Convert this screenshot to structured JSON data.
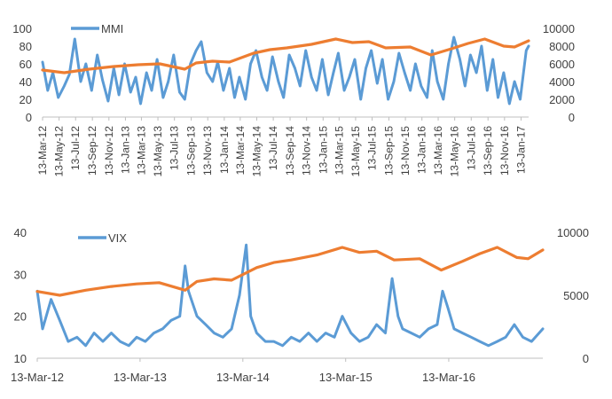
{
  "colors": {
    "primary": "#5B9BD5",
    "secondary": "#ED7D31",
    "axis": "#BFBFBF",
    "text": "#404040"
  },
  "chart_data": [
    {
      "type": "line",
      "legend": {
        "label": "MMI",
        "placement": "top-left"
      },
      "y_left": {
        "ticks": [
          "0",
          "20",
          "40",
          "60",
          "80",
          "100"
        ],
        "range": [
          0,
          100
        ]
      },
      "y_right": {
        "ticks": [
          "0",
          "2000",
          "4000",
          "6000",
          "8000",
          "10000"
        ],
        "range": [
          0,
          10000
        ]
      },
      "x_range": [
        "2012-03-13",
        "2017-02-10"
      ],
      "x_tick_labels": [
        "13-Mar-12",
        "13-May-12",
        "13-Jul-12",
        "13-Sep-12",
        "13-Nov-12",
        "13-Jan-13",
        "13-Mar-13",
        "13-May-13",
        "13-Jul-13",
        "13-Sep-13",
        "13-Nov-13",
        "13-Jan-14",
        "13-Mar-14",
        "13-May-14",
        "13-Jul-14",
        "13-Sep-14",
        "13-Nov-14",
        "13-Jan-15",
        "13-Mar-15",
        "13-May-15",
        "13-Jul-15",
        "13-Sep-15",
        "13-Nov-15",
        "13-Jan-16",
        "13-Mar-16",
        "13-May-16",
        "13-Jul-16",
        "13-Sep-16",
        "13-Nov-16",
        "13-Jan-17"
      ],
      "series": [
        {
          "name": "MMI",
          "axis": "left",
          "color": "#5B9BD5",
          "x": [
            "2012-03-13",
            "2012-04-01",
            "2012-04-20",
            "2012-05-10",
            "2012-06-01",
            "2012-06-20",
            "2012-07-10",
            "2012-08-01",
            "2012-08-20",
            "2012-09-10",
            "2012-10-01",
            "2012-10-20",
            "2012-11-10",
            "2012-12-01",
            "2012-12-20",
            "2013-01-10",
            "2013-02-01",
            "2013-02-20",
            "2013-03-10",
            "2013-04-01",
            "2013-04-20",
            "2013-05-10",
            "2013-06-01",
            "2013-06-20",
            "2013-07-10",
            "2013-08-01",
            "2013-08-20",
            "2013-09-10",
            "2013-10-01",
            "2013-10-20",
            "2013-11-10",
            "2013-12-01",
            "2013-12-20",
            "2014-01-10",
            "2014-02-01",
            "2014-02-20",
            "2014-03-10",
            "2014-04-01",
            "2014-04-20",
            "2014-05-10",
            "2014-06-01",
            "2014-06-20",
            "2014-07-10",
            "2014-08-01",
            "2014-08-20",
            "2014-09-10",
            "2014-10-01",
            "2014-10-20",
            "2014-11-10",
            "2014-12-01",
            "2014-12-20",
            "2015-01-10",
            "2015-02-01",
            "2015-02-20",
            "2015-03-10",
            "2015-04-01",
            "2015-04-20",
            "2015-05-10",
            "2015-06-01",
            "2015-06-20",
            "2015-07-10",
            "2015-08-01",
            "2015-08-20",
            "2015-09-10",
            "2015-10-01",
            "2015-10-20",
            "2015-11-10",
            "2015-12-01",
            "2015-12-20",
            "2016-01-10",
            "2016-02-01",
            "2016-02-20",
            "2016-03-10",
            "2016-04-01",
            "2016-04-20",
            "2016-05-10",
            "2016-06-01",
            "2016-06-20",
            "2016-07-10",
            "2016-08-01",
            "2016-08-20",
            "2016-09-10",
            "2016-10-01",
            "2016-10-20",
            "2016-11-10",
            "2016-12-01",
            "2016-12-20",
            "2017-01-10",
            "2017-02-01",
            "2017-02-10"
          ],
          "values": [
            62,
            30,
            50,
            22,
            35,
            48,
            88,
            40,
            60,
            30,
            70,
            42,
            18,
            55,
            25,
            60,
            28,
            45,
            15,
            50,
            30,
            65,
            22,
            40,
            70,
            28,
            20,
            60,
            75,
            85,
            50,
            40,
            62,
            30,
            55,
            22,
            45,
            20,
            60,
            75,
            45,
            30,
            68,
            40,
            22,
            70,
            55,
            35,
            75,
            45,
            30,
            65,
            25,
            50,
            72,
            30,
            45,
            65,
            20,
            55,
            75,
            38,
            65,
            20,
            40,
            72,
            50,
            30,
            60,
            35,
            22,
            75,
            40,
            20,
            60,
            90,
            65,
            35,
            70,
            50,
            80,
            30,
            65,
            22,
            50,
            15,
            40,
            20,
            75,
            80
          ]
        },
        {
          "name": "",
          "axis": "right",
          "color": "#ED7D31",
          "x": [
            "2012-03-13",
            "2012-06-01",
            "2012-09-01",
            "2012-12-01",
            "2013-03-01",
            "2013-05-20",
            "2013-08-20",
            "2013-10-01",
            "2013-12-01",
            "2014-02-01",
            "2014-05-01",
            "2014-07-01",
            "2014-09-01",
            "2014-12-01",
            "2015-03-01",
            "2015-05-01",
            "2015-07-01",
            "2015-09-01",
            "2015-12-01",
            "2016-02-15",
            "2016-05-01",
            "2016-07-01",
            "2016-09-01",
            "2016-11-10",
            "2016-12-20",
            "2017-02-10"
          ],
          "values": [
            5300,
            5000,
            5400,
            5700,
            5900,
            6000,
            5400,
            6100,
            6300,
            6200,
            7200,
            7600,
            7800,
            8200,
            8800,
            8400,
            8500,
            7800,
            7900,
            7000,
            7700,
            8300,
            8800,
            8000,
            7900,
            8600
          ]
        }
      ]
    },
    {
      "type": "line",
      "legend": {
        "label": "VIX",
        "placement": "top-left"
      },
      "y_left": {
        "ticks": [
          "10",
          "20",
          "30",
          "40"
        ],
        "range": [
          10,
          40
        ]
      },
      "y_right": {
        "ticks": [
          "0",
          "5000",
          "10000"
        ],
        "range": [
          0,
          10000
        ]
      },
      "x_range": [
        "2012-03-13",
        "2017-02-10"
      ],
      "x_tick_labels": [
        "13-Mar-12",
        "13-Mar-13",
        "13-Mar-14",
        "13-Mar-15",
        "13-Mar-16"
      ],
      "series": [
        {
          "name": "VIX",
          "axis": "left",
          "color": "#5B9BD5",
          "x": [
            "2012-03-13",
            "2012-04-01",
            "2012-05-01",
            "2012-06-01",
            "2012-07-01",
            "2012-08-01",
            "2012-09-01",
            "2012-10-01",
            "2012-11-01",
            "2012-12-01",
            "2013-01-01",
            "2013-02-01",
            "2013-03-01",
            "2013-04-01",
            "2013-05-01",
            "2013-06-01",
            "2013-07-01",
            "2013-08-01",
            "2013-08-20",
            "2013-09-01",
            "2013-10-01",
            "2013-11-01",
            "2013-12-01",
            "2014-01-01",
            "2014-02-01",
            "2014-03-01",
            "2014-03-25",
            "2014-04-10",
            "2014-05-01",
            "2014-06-01",
            "2014-07-01",
            "2014-08-01",
            "2014-09-01",
            "2014-10-01",
            "2014-11-01",
            "2014-12-01",
            "2015-01-01",
            "2015-02-01",
            "2015-03-01",
            "2015-04-01",
            "2015-05-01",
            "2015-06-01",
            "2015-07-01",
            "2015-08-01",
            "2015-08-25",
            "2015-09-15",
            "2015-10-01",
            "2015-11-01",
            "2015-12-01",
            "2016-01-01",
            "2016-02-01",
            "2016-02-20",
            "2016-03-10",
            "2016-04-01",
            "2016-05-01",
            "2016-06-01",
            "2016-07-01",
            "2016-08-01",
            "2016-09-01",
            "2016-10-01",
            "2016-11-01",
            "2016-12-01",
            "2017-01-01",
            "2017-02-10"
          ],
          "values": [
            26,
            17,
            24,
            19,
            14,
            15,
            13,
            16,
            14,
            16,
            14,
            13,
            15,
            14,
            16,
            17,
            19,
            20,
            32,
            26,
            20,
            18,
            16,
            15,
            17,
            25,
            37,
            20,
            16,
            14,
            14,
            13,
            15,
            14,
            16,
            14,
            16,
            15,
            20,
            16,
            14,
            15,
            18,
            16,
            29,
            20,
            17,
            16,
            15,
            17,
            18,
            26,
            22,
            17,
            16,
            15,
            14,
            13,
            14,
            15,
            18,
            15,
            14,
            17
          ]
        },
        {
          "name": "",
          "axis": "right",
          "color": "#ED7D31",
          "x": [
            "2012-03-13",
            "2012-06-01",
            "2012-09-01",
            "2012-12-01",
            "2013-03-01",
            "2013-05-20",
            "2013-08-20",
            "2013-10-01",
            "2013-12-01",
            "2014-02-01",
            "2014-05-01",
            "2014-07-01",
            "2014-09-01",
            "2014-12-01",
            "2015-03-01",
            "2015-05-01",
            "2015-07-01",
            "2015-09-01",
            "2015-12-01",
            "2016-02-15",
            "2016-05-01",
            "2016-07-01",
            "2016-09-01",
            "2016-11-10",
            "2016-12-20",
            "2017-02-10"
          ],
          "values": [
            5300,
            5000,
            5400,
            5700,
            5900,
            6000,
            5400,
            6100,
            6300,
            6200,
            7200,
            7600,
            7800,
            8200,
            8800,
            8400,
            8500,
            7800,
            7900,
            7000,
            7700,
            8300,
            8800,
            8000,
            7900,
            8600
          ]
        }
      ]
    }
  ]
}
